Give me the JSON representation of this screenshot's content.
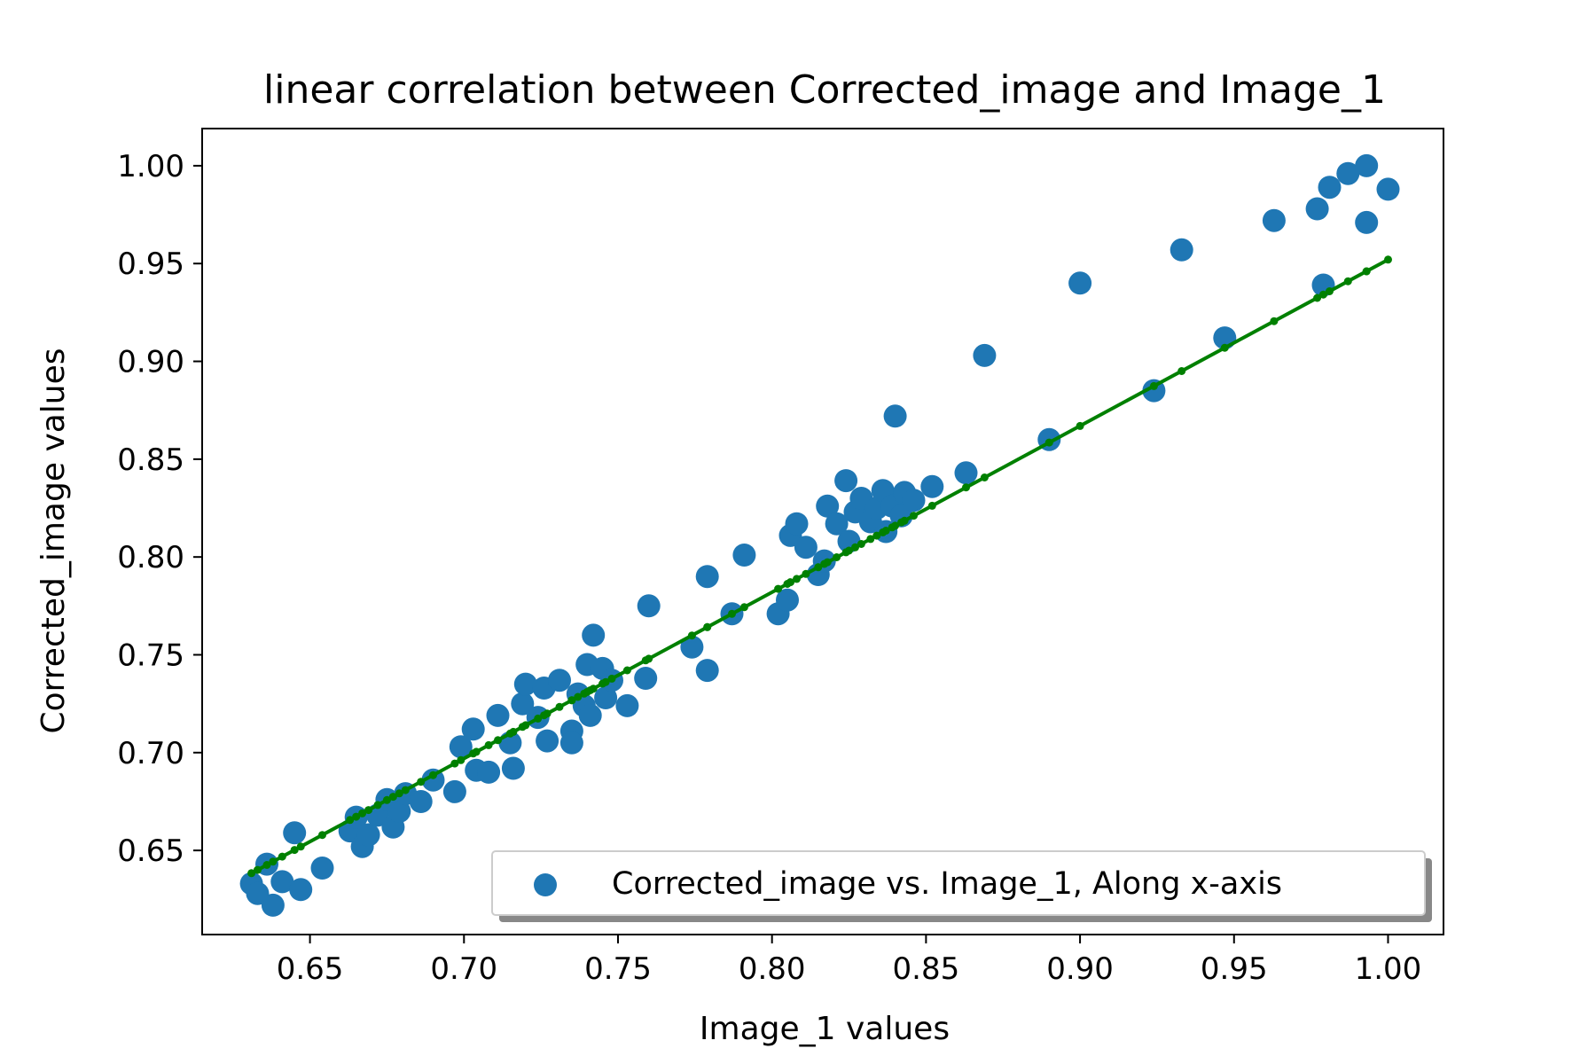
{
  "chart_data": {
    "type": "scatter",
    "title": "linear correlation between Corrected_image and Image_1",
    "xlabel": "Image_1 values",
    "ylabel": "Corrected_image values",
    "xlim": [
      0.615,
      1.018
    ],
    "ylim": [
      0.607,
      1.019
    ],
    "xticks": [
      0.65,
      0.7,
      0.75,
      0.8,
      0.85,
      0.9,
      0.95,
      1.0
    ],
    "xtick_labels": [
      "0.65",
      "0.70",
      "0.75",
      "0.80",
      "0.85",
      "0.90",
      "0.95",
      "1.00"
    ],
    "yticks": [
      0.65,
      0.7,
      0.75,
      0.8,
      0.85,
      0.9,
      0.95,
      1.0
    ],
    "ytick_labels": [
      "0.65",
      "0.70",
      "0.75",
      "0.80",
      "0.85",
      "0.90",
      "0.95",
      "1.00"
    ],
    "grid": false,
    "legend_position": "bottom-right",
    "series": [
      {
        "name": "Corrected_image vs. Image_1, Along x-axis",
        "kind": "scatter",
        "color": "#1f77b4",
        "points": [
          [
            0.631,
            0.633
          ],
          [
            0.633,
            0.628
          ],
          [
            0.636,
            0.643
          ],
          [
            0.638,
            0.622
          ],
          [
            0.641,
            0.634
          ],
          [
            0.645,
            0.659
          ],
          [
            0.647,
            0.63
          ],
          [
            0.654,
            0.641
          ],
          [
            0.663,
            0.66
          ],
          [
            0.665,
            0.667
          ],
          [
            0.667,
            0.652
          ],
          [
            0.669,
            0.658
          ],
          [
            0.672,
            0.668
          ],
          [
            0.675,
            0.676
          ],
          [
            0.677,
            0.662
          ],
          [
            0.679,
            0.67
          ],
          [
            0.681,
            0.679
          ],
          [
            0.686,
            0.675
          ],
          [
            0.69,
            0.686
          ],
          [
            0.697,
            0.68
          ],
          [
            0.699,
            0.703
          ],
          [
            0.703,
            0.712
          ],
          [
            0.704,
            0.691
          ],
          [
            0.708,
            0.69
          ],
          [
            0.711,
            0.719
          ],
          [
            0.715,
            0.705
          ],
          [
            0.716,
            0.692
          ],
          [
            0.719,
            0.725
          ],
          [
            0.72,
            0.735
          ],
          [
            0.724,
            0.718
          ],
          [
            0.726,
            0.733
          ],
          [
            0.727,
            0.706
          ],
          [
            0.731,
            0.737
          ],
          [
            0.735,
            0.711
          ],
          [
            0.735,
            0.705
          ],
          [
            0.737,
            0.73
          ],
          [
            0.739,
            0.724
          ],
          [
            0.74,
            0.745
          ],
          [
            0.741,
            0.719
          ],
          [
            0.742,
            0.76
          ],
          [
            0.745,
            0.743
          ],
          [
            0.746,
            0.728
          ],
          [
            0.748,
            0.737
          ],
          [
            0.753,
            0.724
          ],
          [
            0.759,
            0.738
          ],
          [
            0.76,
            0.775
          ],
          [
            0.774,
            0.754
          ],
          [
            0.779,
            0.742
          ],
          [
            0.779,
            0.79
          ],
          [
            0.787,
            0.771
          ],
          [
            0.791,
            0.801
          ],
          [
            0.802,
            0.771
          ],
          [
            0.805,
            0.778
          ],
          [
            0.806,
            0.811
          ],
          [
            0.808,
            0.817
          ],
          [
            0.811,
            0.805
          ],
          [
            0.815,
            0.791
          ],
          [
            0.817,
            0.798
          ],
          [
            0.818,
            0.826
          ],
          [
            0.821,
            0.817
          ],
          [
            0.824,
            0.839
          ],
          [
            0.825,
            0.808
          ],
          [
            0.827,
            0.823
          ],
          [
            0.829,
            0.83
          ],
          [
            0.832,
            0.818
          ],
          [
            0.834,
            0.825
          ],
          [
            0.836,
            0.834
          ],
          [
            0.837,
            0.813
          ],
          [
            0.839,
            0.826
          ],
          [
            0.84,
            0.872
          ],
          [
            0.842,
            0.821
          ],
          [
            0.843,
            0.833
          ],
          [
            0.846,
            0.829
          ],
          [
            0.852,
            0.836
          ],
          [
            0.863,
            0.843
          ],
          [
            0.869,
            0.903
          ],
          [
            0.89,
            0.86
          ],
          [
            0.9,
            0.94
          ],
          [
            0.924,
            0.885
          ],
          [
            0.933,
            0.957
          ],
          [
            0.947,
            0.912
          ],
          [
            0.963,
            0.972
          ],
          [
            0.977,
            0.978
          ],
          [
            0.979,
            0.939
          ],
          [
            0.981,
            0.989
          ],
          [
            0.987,
            0.996
          ],
          [
            0.993,
            0.971
          ],
          [
            0.993,
            1.0
          ],
          [
            1.0,
            0.988
          ]
        ]
      },
      {
        "name": "fit",
        "kind": "line",
        "color": "#008000",
        "x_start": 0.631,
        "x_end": 1.0,
        "slope": 0.85,
        "intercept": 0.102
      }
    ]
  }
}
